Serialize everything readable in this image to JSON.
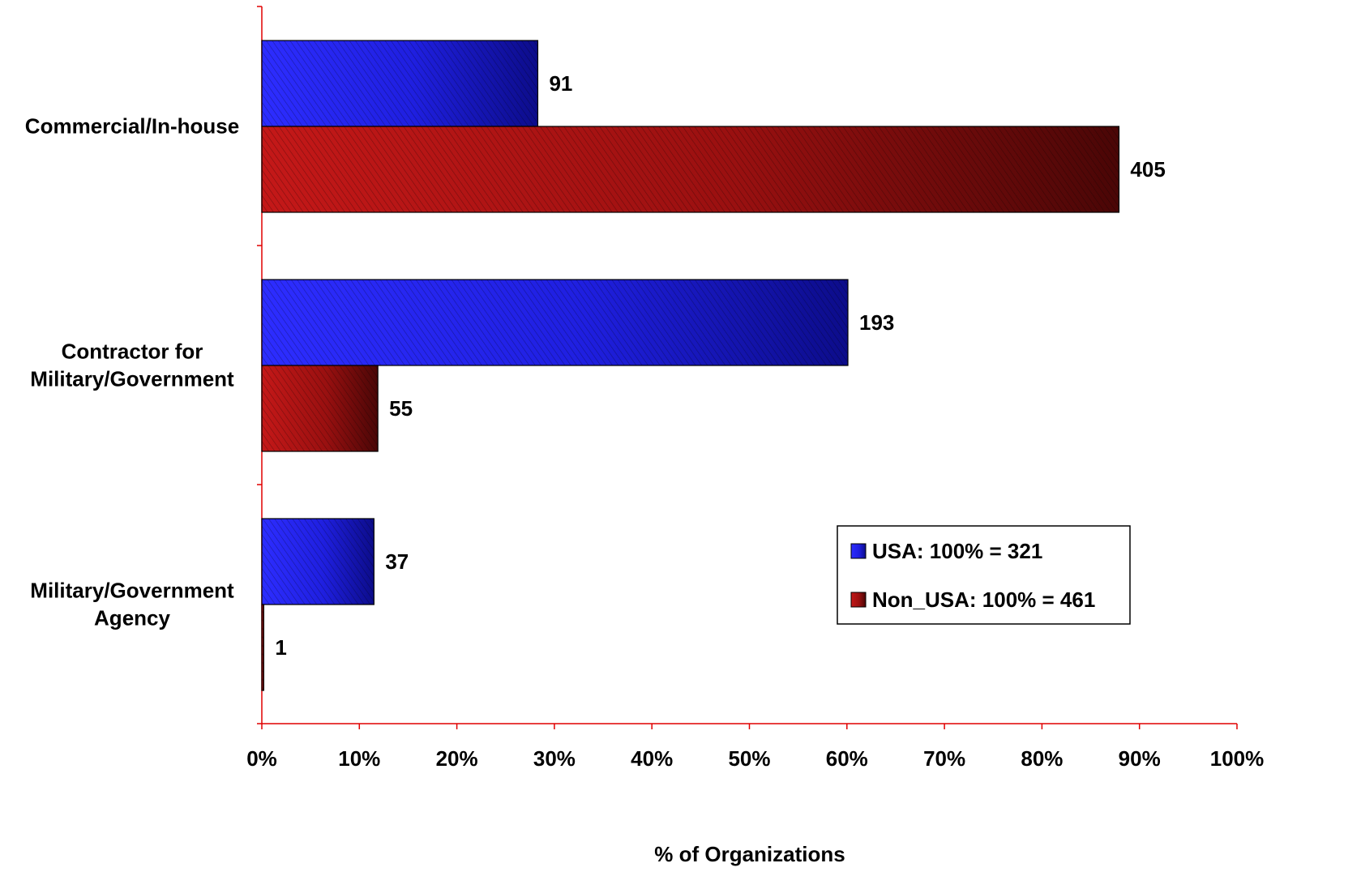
{
  "chart_data": {
    "type": "bar",
    "orientation": "horizontal",
    "title": "",
    "xlabel": "% of Organizations",
    "ylabel": "",
    "xlim": [
      0,
      100
    ],
    "x_ticks": [
      "0%",
      "10%",
      "20%",
      "30%",
      "40%",
      "50%",
      "60%",
      "70%",
      "80%",
      "90%",
      "100%"
    ],
    "categories": [
      [
        "Commercial/In-house"
      ],
      [
        "Contractor for",
        "Military/Government"
      ],
      [
        "Military/Government",
        "Agency"
      ]
    ],
    "series": [
      {
        "name": "USA: 100% = 321",
        "color": "#1a1ae6",
        "values": [
          28.3,
          60.1,
          11.5
        ],
        "labels": [
          "91",
          "193",
          "37"
        ]
      },
      {
        "name": "Non_USA: 100% = 461",
        "color": "#9b1010",
        "values": [
          87.9,
          11.9,
          0.2
        ],
        "labels": [
          "405",
          "55",
          "1"
        ]
      }
    ],
    "legend_position": "lower-right",
    "grid": false,
    "axis_color": "#e00000"
  }
}
